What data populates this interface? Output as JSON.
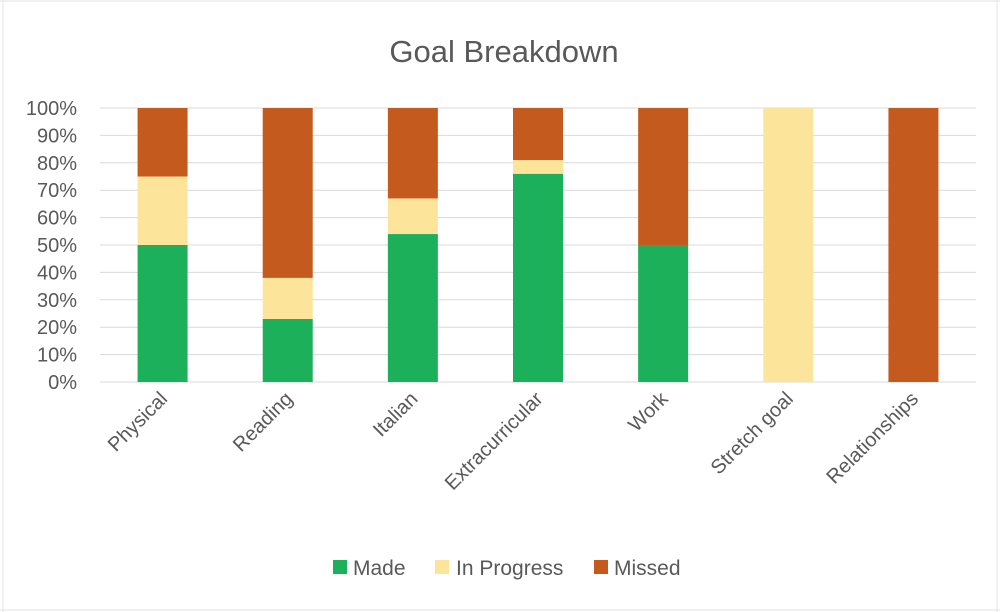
{
  "colors": {
    "made": "#1cb05a",
    "in_progress": "#fce49b",
    "missed": "#c55a1e"
  },
  "chart_data": {
    "type": "bar",
    "stacked": "percent",
    "title": "Goal Breakdown",
    "categories": [
      "Physical",
      "Reading",
      "Italian",
      "Extracurricular",
      "Work",
      "Stretch goal",
      "Relationships"
    ],
    "series": [
      {
        "name": "Made",
        "color_key": "made",
        "values": [
          50,
          23,
          54,
          76,
          50,
          0,
          0
        ]
      },
      {
        "name": "In Progress",
        "color_key": "in_progress",
        "values": [
          25,
          15,
          13,
          5,
          0,
          100,
          0
        ]
      },
      {
        "name": "Missed",
        "color_key": "missed",
        "values": [
          25,
          62,
          33,
          19,
          50,
          0,
          100
        ]
      }
    ],
    "ylim": [
      0,
      100
    ],
    "yticks": [
      "0%",
      "10%",
      "20%",
      "30%",
      "40%",
      "50%",
      "60%",
      "70%",
      "80%",
      "90%",
      "100%"
    ],
    "grid": true,
    "legend": "bottom"
  }
}
